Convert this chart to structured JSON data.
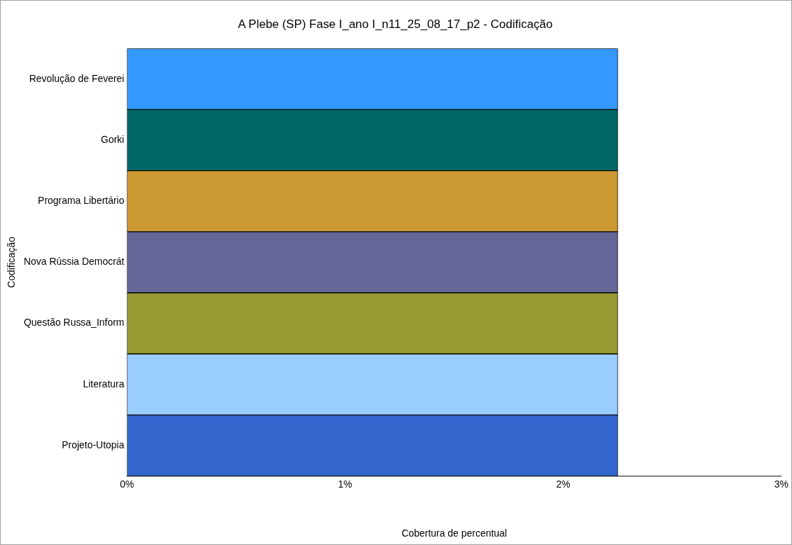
{
  "chart_data": {
    "type": "bar",
    "orientation": "horizontal",
    "title": "A Plebe (SP) Fase I_ano I_n11_25_08_17_p2 - Codificação",
    "xlabel": "Cobertura de percentual",
    "ylabel": "Codificação",
    "categories": [
      "Revolução de Feverei",
      "Gorki",
      "Programa Libertário",
      "Nova Rússia Democrát",
      "Questão Russa_Inform",
      "Literatura",
      "Projeto-Utopia"
    ],
    "values": [
      2.25,
      2.25,
      2.25,
      2.25,
      2.25,
      2.25,
      2.25
    ],
    "colors": [
      "#3399ff",
      "#006666",
      "#cc9933",
      "#666699",
      "#999933",
      "#99ccff",
      "#3366cc"
    ],
    "xlim": [
      0,
      3
    ],
    "xticks": [
      {
        "value": 0,
        "label": "0%"
      },
      {
        "value": 1,
        "label": "1%"
      },
      {
        "value": 2,
        "label": "2%"
      },
      {
        "value": 3,
        "label": "3%"
      }
    ],
    "grid": false,
    "legend": false
  }
}
